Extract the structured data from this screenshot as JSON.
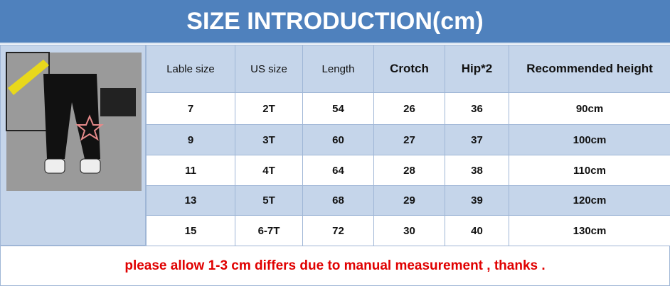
{
  "header": {
    "title": "SIZE INTRODUCTION(cm)"
  },
  "table": {
    "columns": [
      "Lable size",
      "US size",
      "Length",
      "Crotch",
      "Hip*2",
      "Recommended height"
    ],
    "rows": [
      [
        7,
        "2T",
        54,
        26,
        36,
        "90cm"
      ],
      [
        9,
        "3T",
        60,
        27,
        37,
        "100cm"
      ],
      [
        11,
        "4T",
        64,
        28,
        38,
        "110cm"
      ],
      [
        13,
        "5T",
        68,
        29,
        39,
        "120cm"
      ],
      [
        15,
        "6-7T",
        72,
        30,
        40,
        "130cm"
      ]
    ]
  },
  "footer": {
    "note": "please allow 1-3 cm differs due to manual measurement , thanks ."
  }
}
